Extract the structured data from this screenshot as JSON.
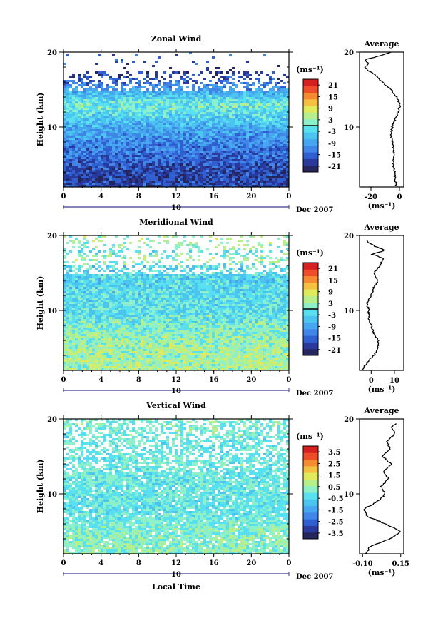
{
  "chart_data": [
    {
      "type": "heatmap",
      "title": "Zonal Wind",
      "ylabel": "Height (km)",
      "xlabel": "",
      "x_ticks": [
        "0",
        "4",
        "8",
        "12",
        "16",
        "20",
        "0"
      ],
      "y_ticks": [
        "20",
        "10"
      ],
      "ylim": [
        2,
        20
      ],
      "xlim": [
        0,
        24
      ],
      "date_day": "10",
      "date_label": "Dec 2007",
      "colorbar": {
        "unit": "(ms⁻¹)",
        "ticks": [
          "21",
          "15",
          "9",
          "3",
          "-3",
          "-9",
          "-15",
          "-21"
        ],
        "range": [
          -24,
          24
        ],
        "zero_line": 0
      },
      "values_summary": {
        "heights_km": [
          4,
          6,
          8,
          10,
          11,
          12,
          13,
          14,
          15,
          16,
          17,
          18,
          19
        ],
        "mean_wind_ms": [
          -18,
          -15,
          -12,
          -8,
          -5,
          -2,
          0,
          -3,
          -8,
          -14,
          -18,
          -21,
          -16
        ]
      },
      "profile": {
        "title": "Average",
        "xlabel": "(ms⁻¹)",
        "x_ticks": [
          "-20",
          "0"
        ],
        "xlim": [
          -28,
          3
        ],
        "height_km": [
          2,
          3,
          4,
          5,
          6,
          7,
          8,
          9,
          10,
          11,
          12,
          13,
          14,
          15,
          16,
          17,
          17.5,
          18,
          18.5,
          19,
          19.5,
          20
        ],
        "value_ms": [
          -2,
          -3,
          -3.5,
          -4.5,
          -4,
          -4,
          -5,
          -6,
          -5,
          -3,
          -1,
          0.5,
          -2,
          -6,
          -12,
          -17,
          -22,
          -24,
          -22,
          -24,
          -14,
          -6
        ]
      }
    },
    {
      "type": "heatmap",
      "title": "Meridional Wind",
      "ylabel": "Height (km)",
      "xlabel": "",
      "x_ticks": [
        "0",
        "4",
        "8",
        "12",
        "16",
        "20",
        "0"
      ],
      "y_ticks": [
        "20",
        "10"
      ],
      "ylim": [
        2,
        20
      ],
      "xlim": [
        0,
        24
      ],
      "date_day": "10",
      "date_label": "Dec 2007",
      "colorbar": {
        "unit": "(ms⁻¹)",
        "ticks": [
          "21",
          "15",
          "9",
          "3",
          "-3",
          "-9",
          "-15",
          "-21"
        ],
        "range": [
          -24,
          24
        ],
        "zero_line": 0
      },
      "values_summary": {
        "heights_km": [
          4,
          6,
          8,
          10,
          12,
          14,
          16,
          17,
          18,
          19
        ],
        "mean_wind_ms": [
          4,
          3,
          1,
          -2,
          -2,
          -3,
          -2,
          4,
          -1,
          3
        ]
      },
      "profile": {
        "title": "Average",
        "xlabel": "(ms⁻¹)",
        "x_ticks": [
          "0",
          "10"
        ],
        "xlim": [
          -5,
          14
        ],
        "height_km": [
          2,
          3,
          4,
          5,
          6,
          7,
          8,
          9,
          10,
          11,
          12,
          13,
          14,
          15,
          16,
          17,
          17.5,
          18,
          18.5,
          19,
          19.5
        ],
        "value_ms": [
          -4,
          -2,
          1,
          3,
          3,
          1,
          0,
          -1,
          -1,
          -2,
          0,
          1,
          3,
          1,
          4,
          5,
          0,
          6,
          2,
          -1,
          -2
        ]
      }
    },
    {
      "type": "heatmap",
      "title": "Vertical Wind",
      "ylabel": "Height (km)",
      "xlabel": "Local Time",
      "x_ticks": [
        "0",
        "4",
        "8",
        "12",
        "16",
        "20",
        "0"
      ],
      "y_ticks": [
        "20",
        "10"
      ],
      "ylim": [
        2,
        20
      ],
      "xlim": [
        0,
        24
      ],
      "date_day": "10",
      "date_label": "Dec 2007",
      "colorbar": {
        "unit": "(ms⁻¹)",
        "ticks": [
          "3.5",
          "2.5",
          "1.5",
          "0.5",
          "-0.5",
          "-1.5",
          "-2.5",
          "-3.5"
        ],
        "range": [
          -4,
          4
        ],
        "zero_line": null
      },
      "values_summary": {
        "heights_km": [
          4,
          6,
          8,
          10,
          12,
          14,
          16,
          18,
          19
        ],
        "mean_wind_ms": [
          0.3,
          0.1,
          -0.2,
          -0.1,
          -0.1,
          0.0,
          -0.1,
          0.0,
          0.1
        ]
      },
      "profile": {
        "title": "Average",
        "xlabel": "(ms⁻¹)",
        "x_ticks": [
          "-0.10",
          "0.15"
        ],
        "xlim": [
          -0.12,
          0.17
        ],
        "height_km": [
          2,
          3,
          4,
          5,
          6,
          7,
          8,
          9,
          10,
          11,
          12,
          13,
          14,
          15,
          16,
          17,
          18,
          19,
          19.5
        ],
        "value_ms": [
          -0.08,
          -0.05,
          0.08,
          0.15,
          0.05,
          -0.07,
          -0.09,
          0.0,
          0.05,
          0.02,
          0.07,
          0.04,
          0.09,
          0.03,
          0.08,
          0.06,
          0.11,
          0.09,
          0.13
        ]
      }
    }
  ],
  "colors": {
    "scale": [
      "#26265e",
      "#2a3a9c",
      "#2f5fd0",
      "#3f86e8",
      "#46a6f0",
      "#4cc4f0",
      "#58e0f0",
      "#8ef0c8",
      "#b7ef8a",
      "#e0ea5a",
      "#f4c040",
      "#f58a30",
      "#ef4c2a",
      "#d62020"
    ]
  }
}
